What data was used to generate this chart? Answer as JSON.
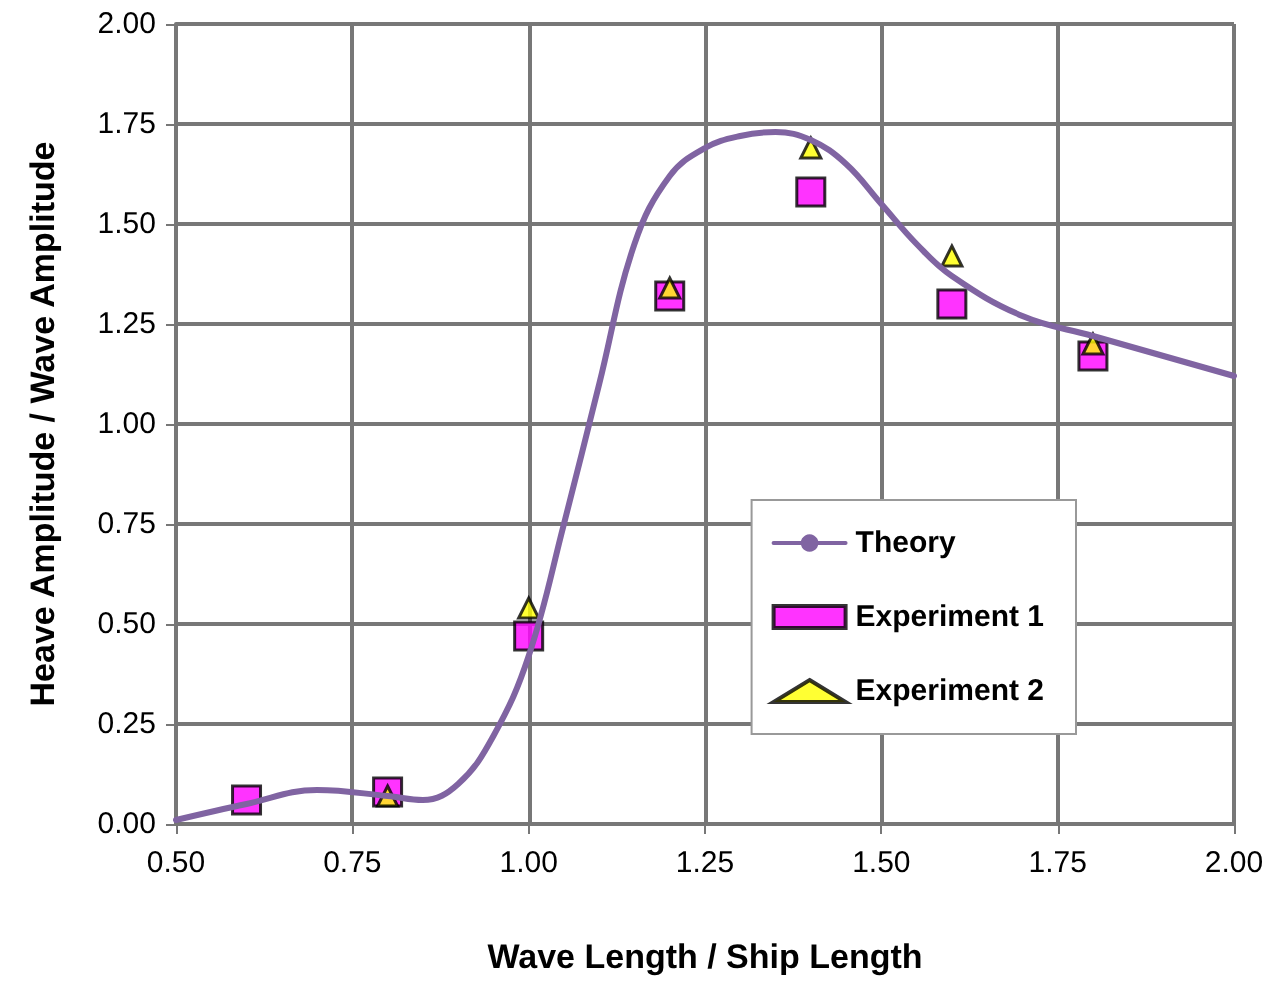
{
  "chart_data": {
    "type": "line",
    "xlabel": "Wave Length / Ship Length",
    "ylabel": "Heave Amplitude / Wave Amplitude",
    "xlim": [
      0.5,
      2.0
    ],
    "xticks": [
      {
        "value": 0.5,
        "label": "0.50"
      },
      {
        "value": 0.75,
        "label": "0.75"
      },
      {
        "value": 1.0,
        "label": "1.00"
      },
      {
        "value": 1.25,
        "label": "1.25"
      },
      {
        "value": 1.5,
        "label": "1.50"
      },
      {
        "value": 1.75,
        "label": "1.75"
      },
      {
        "value": 2.0,
        "label": "2.00"
      }
    ],
    "ylim": [
      0,
      2.0
    ],
    "yticks": [
      {
        "value": 0,
        "label": "0.00"
      },
      {
        "value": 0.25,
        "label": "0.25"
      },
      {
        "value": 0.5,
        "label": "0.50"
      },
      {
        "value": 0.75,
        "label": "0.75"
      },
      {
        "value": 1.0,
        "label": "1.00"
      },
      {
        "value": 1.25,
        "label": "1.25"
      },
      {
        "value": 1.5,
        "label": "1.50"
      },
      {
        "value": 1.75,
        "label": "1.75"
      },
      {
        "value": 2.0,
        "label": "2.00"
      }
    ],
    "grid": true,
    "legend": "right",
    "series": [
      {
        "name": "Theory",
        "color": "#8064a2",
        "marker": "none",
        "line_style": "solid",
        "x": [
          0.5,
          0.6,
          0.7,
          0.8,
          0.85,
          0.9,
          0.95,
          1.0,
          1.05,
          1.1,
          1.15,
          1.2,
          1.25,
          1.3,
          1.35,
          1.4,
          1.45,
          1.5,
          1.55,
          1.6,
          1.7,
          1.8,
          1.9,
          2.0
        ],
        "values": [
          0.01,
          0.05,
          0.085,
          0.07,
          0.06,
          0.1,
          0.22,
          0.42,
          0.75,
          1.1,
          1.45,
          1.62,
          1.69,
          1.72,
          1.73,
          1.71,
          1.65,
          1.55,
          1.45,
          1.37,
          1.27,
          1.22,
          1.17,
          1.12
        ]
      },
      {
        "name": "Experiment 1",
        "type": "scatter",
        "color": "#ff00ff",
        "marker": "square",
        "x": [
          0.6,
          0.8,
          1.0,
          1.2,
          1.4,
          1.6,
          1.8
        ],
        "values": [
          0.06,
          0.08,
          0.47,
          1.32,
          1.58,
          1.3,
          1.17
        ]
      },
      {
        "name": "Experiment 2",
        "type": "scatter",
        "color": "#ffff00",
        "marker": "triangle",
        "x": [
          0.8,
          1.0,
          1.2,
          1.4,
          1.6,
          1.8
        ],
        "values": [
          0.07,
          0.54,
          1.34,
          1.69,
          1.42,
          1.2
        ]
      }
    ]
  }
}
